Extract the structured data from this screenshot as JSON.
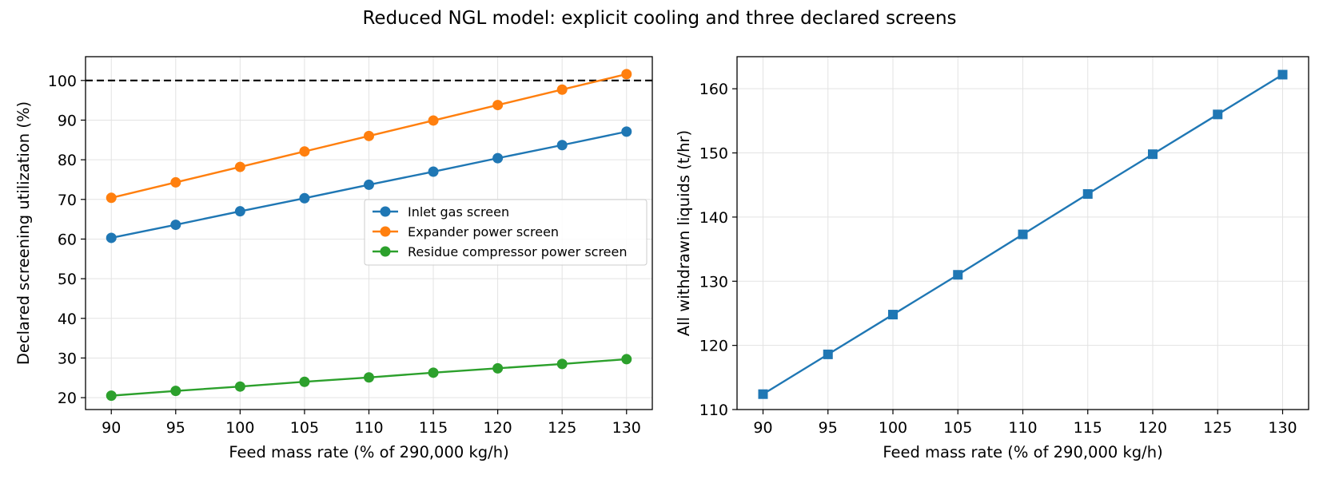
{
  "figure": {
    "suptitle": "Reduced NGL model: explicit cooling and three declared screens"
  },
  "chart_data": [
    {
      "type": "line",
      "title": "",
      "xlabel": "Feed mass rate (% of 290,000 kg/h)",
      "ylabel": "Declared screening utilization (%)",
      "x": [
        90,
        95,
        100,
        105,
        110,
        115,
        120,
        125,
        130
      ],
      "xlim": [
        88,
        132
      ],
      "ylim": [
        17,
        106
      ],
      "xticks": [
        90,
        95,
        100,
        105,
        110,
        115,
        120,
        125,
        130
      ],
      "yticks": [
        20,
        30,
        40,
        50,
        60,
        70,
        80,
        90,
        100
      ],
      "grid": true,
      "legend_position": "center-right",
      "reference_line": {
        "y": 100,
        "style": "dashed",
        "color": "#000000"
      },
      "series": [
        {
          "name": "Inlet gas screen",
          "color": "#1f77b4",
          "marker": "circle",
          "values": [
            60.3,
            63.6,
            67.0,
            70.3,
            73.7,
            77.0,
            80.4,
            83.7,
            87.1
          ]
        },
        {
          "name": "Expander power screen",
          "color": "#ff7f0e",
          "marker": "circle",
          "values": [
            70.4,
            74.3,
            78.2,
            82.1,
            86.0,
            89.9,
            93.8,
            97.7,
            101.6
          ]
        },
        {
          "name": "Residue compressor power screen",
          "color": "#2ca02c",
          "marker": "circle",
          "values": [
            20.5,
            21.7,
            22.8,
            24.0,
            25.1,
            26.3,
            27.4,
            28.5,
            29.7
          ]
        }
      ]
    },
    {
      "type": "line",
      "title": "",
      "xlabel": "Feed mass rate (% of 290,000 kg/h)",
      "ylabel": "All withdrawn liquids (t/hr)",
      "x": [
        90,
        95,
        100,
        105,
        110,
        115,
        120,
        125,
        130
      ],
      "xlim": [
        88,
        132
      ],
      "ylim": [
        110,
        165
      ],
      "xticks": [
        90,
        95,
        100,
        105,
        110,
        115,
        120,
        125,
        130
      ],
      "yticks": [
        110,
        120,
        130,
        140,
        150,
        160
      ],
      "grid": true,
      "series": [
        {
          "name": "",
          "color": "#1f77b4",
          "marker": "square",
          "values": [
            112.4,
            118.6,
            124.8,
            131.0,
            137.3,
            143.6,
            149.8,
            156.0,
            162.2
          ]
        }
      ]
    }
  ]
}
